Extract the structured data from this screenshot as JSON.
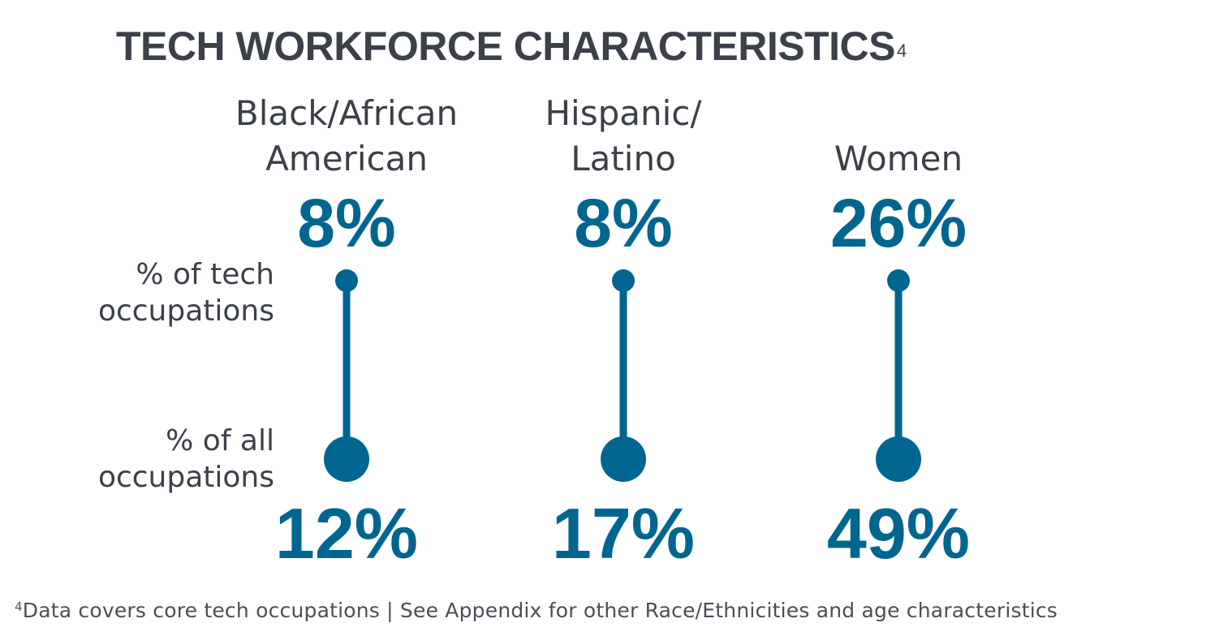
{
  "title": "TECH WORKFORCE CHARACTERISTICS",
  "title_superscript": "4",
  "footnote_marker": "4",
  "footnote": "Data covers core tech occupations | See Appendix for other Race/Ethnicities and age characteristics",
  "colors": {
    "accent": "#00658f",
    "text": "#3b4049"
  },
  "chart_data": {
    "type": "dot-connector",
    "row_labels": {
      "top": [
        "% of tech",
        "occupations"
      ],
      "bottom": [
        "% of all",
        "occupations"
      ]
    },
    "categories": [
      {
        "name_lines": [
          "Black/African",
          "American"
        ],
        "tech_label": "8%",
        "all_label": "12%",
        "tech": 8,
        "all": 12
      },
      {
        "name_lines": [
          "Hispanic/",
          "Latino"
        ],
        "tech_label": "8%",
        "all_label": "17%",
        "tech": 8,
        "all": 17
      },
      {
        "name_lines": [
          "Women"
        ],
        "tech_label": "26%",
        "all_label": "49%",
        "tech": 26,
        "all": 49
      }
    ]
  }
}
